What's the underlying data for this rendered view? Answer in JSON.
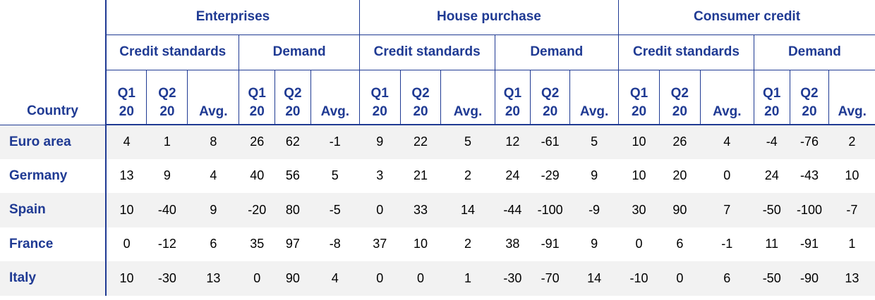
{
  "header": {
    "country_label": "Country",
    "groups": [
      "Enterprises",
      "House purchase",
      "Consumer credit"
    ],
    "subgroups": [
      "Credit standards",
      "Demand"
    ],
    "q1_line1": "Q1",
    "q1_line2": "20",
    "q2_line1": "Q2",
    "q2_line2": "20",
    "avg": "Avg."
  },
  "rows": [
    {
      "country": "Euro area",
      "values": [
        "4",
        "1",
        "8",
        "26",
        "62",
        "-1",
        "9",
        "22",
        "5",
        "12",
        "-61",
        "5",
        "10",
        "26",
        "4",
        "-4",
        "-76",
        "2"
      ]
    },
    {
      "country": "Germany",
      "values": [
        "13",
        "9",
        "4",
        "40",
        "56",
        "5",
        "3",
        "21",
        "2",
        "24",
        "-29",
        "9",
        "10",
        "20",
        "0",
        "24",
        "-43",
        "10"
      ]
    },
    {
      "country": "Spain",
      "values": [
        "10",
        "-40",
        "9",
        "-20",
        "80",
        "-5",
        "0",
        "33",
        "14",
        "-44",
        "-100",
        "-9",
        "30",
        "90",
        "7",
        "-50",
        "-100",
        "-7"
      ]
    },
    {
      "country": "France",
      "values": [
        "0",
        "-12",
        "6",
        "35",
        "97",
        "-8",
        "37",
        "10",
        "2",
        "38",
        "-91",
        "9",
        "0",
        "6",
        "-1",
        "11",
        "-91",
        "1"
      ]
    },
    {
      "country": "Italy",
      "values": [
        "10",
        "-30",
        "13",
        "0",
        "90",
        "4",
        "0",
        "0",
        "1",
        "-30",
        "-70",
        "14",
        "-10",
        "0",
        "6",
        "-50",
        "-90",
        "13"
      ]
    }
  ]
}
